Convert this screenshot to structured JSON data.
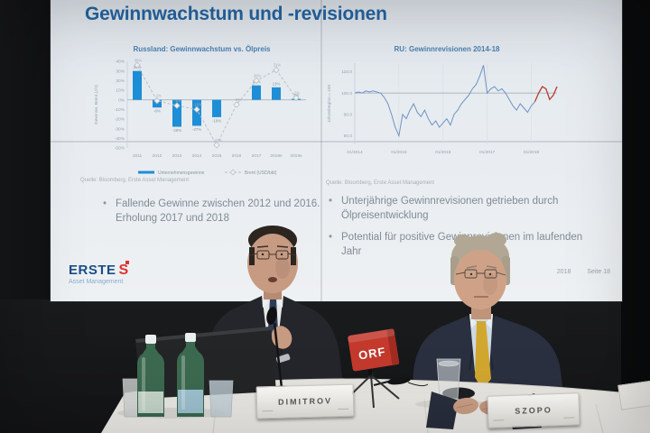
{
  "slide": {
    "title": "Gewinnwachstum und -revisionen",
    "bullets_left": [
      "Fallende Gewinne zwischen 2012 und 2016. Erholung 2017 und 2018"
    ],
    "bullets_right": [
      "Unterjährige Gewinnrevisionen getrieben durch Ölpreisentwicklung",
      "Potential für positive Gewinnrevisionen im laufenden Jahr"
    ],
    "logo": {
      "brand": "ERSTE",
      "icon": "S",
      "sub": "Asset Management"
    },
    "footer_date": "2018",
    "footer_page": "Seite 18"
  },
  "scene": {
    "nameplate_left": "DIMITROV",
    "nameplate_right": "SZOPO",
    "mic_cube_label": "ORF"
  },
  "chart_data": [
    {
      "type": "bar",
      "title": "Russland: Gewinnwachstum vs. Ölpreis",
      "ylabel": "Gewinne, Brent (J/J)",
      "categories": [
        "2011",
        "2012",
        "2013",
        "2014",
        "2015",
        "2016",
        "2017",
        "2018e",
        "2019e"
      ],
      "series": [
        {
          "name": "Unternehmensgewinne",
          "type": "bar",
          "values": [
            30,
            -8,
            -28,
            -27,
            -18,
            0,
            15,
            13,
            1
          ]
        },
        {
          "name": "Brent (USD/bbl)",
          "type": "line",
          "values": [
            36,
            -1,
            -6,
            -10,
            -47,
            -5,
            20,
            31,
            2
          ]
        }
      ],
      "ylim": [
        -50,
        40
      ],
      "yticks": [
        40,
        30,
        20,
        10,
        0,
        -10,
        -20,
        -30,
        -40,
        -50
      ],
      "ytick_suffix": "%",
      "grid": false,
      "legend_position": "bottom",
      "source": "Quelle: Bloomberg, Erste Asset Management"
    },
    {
      "type": "line",
      "title": "RU: Gewinnrevisionen 2014-18",
      "ylabel": "Jahresbeginn = 100",
      "x_labels": [
        "01/2014",
        "01/2015",
        "01/2016",
        "01/2017",
        "01/2018"
      ],
      "x_label_indices": [
        0,
        12,
        24,
        36,
        48
      ],
      "values": [
        100,
        100.5,
        100,
        101,
        100.5,
        101,
        100.5,
        100,
        98,
        95,
        90,
        84,
        80,
        90,
        88,
        92,
        95,
        91,
        89,
        92,
        88,
        85,
        87,
        84,
        86,
        88,
        85,
        90,
        92,
        95,
        97,
        99,
        102,
        104,
        108,
        113,
        100,
        102,
        103,
        101,
        102,
        100,
        97,
        94,
        92,
        95,
        93,
        91,
        94,
        96,
        100,
        103,
        102,
        97,
        99,
        103
      ],
      "red_from_index": 49,
      "ref_line": 100,
      "ylim": [
        76,
        114
      ],
      "yticks": [
        "110.0",
        "100.0",
        "90.0",
        "80.0"
      ],
      "grid": true,
      "source": "Quelle: Bloomberg, Erste Asset Management"
    }
  ],
  "colors": {
    "slide_bg": "#e9edf1",
    "title_blue": "#2566a4",
    "chart_title_blue": "#4a80b2",
    "bar_blue": "#1e8ed6",
    "oil_line_gray": "#b9c1c8",
    "revision_line_blue": "#6e93c4",
    "revision_line_red": "#b8392e",
    "bullet_gray": "#7f8b96",
    "erste_blue": "#1b4e86",
    "erste_red": "#e0312e",
    "orf_red": "#c33a2d",
    "tie_yellow": "#d2a72f"
  }
}
